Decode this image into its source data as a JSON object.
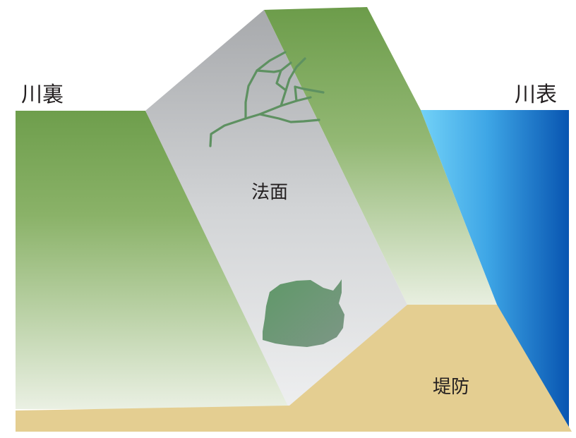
{
  "labels": {
    "landside": "川裏",
    "riverside": "川表",
    "slope_face": "法面",
    "levee": "堤防"
  },
  "colors": {
    "grass_top": "#6e9e4c",
    "grass_bottom": "#e9efe2",
    "slope_gray_top": "#a9abae",
    "slope_gray_bottom": "#eceeef",
    "crack_green": "#5e8f60",
    "patch_green": "#6f8f78",
    "levee_sand": "#e3cd90",
    "water_light": "#6ccdf6",
    "water_dark": "#0a5ab4",
    "text": "#231f20"
  }
}
